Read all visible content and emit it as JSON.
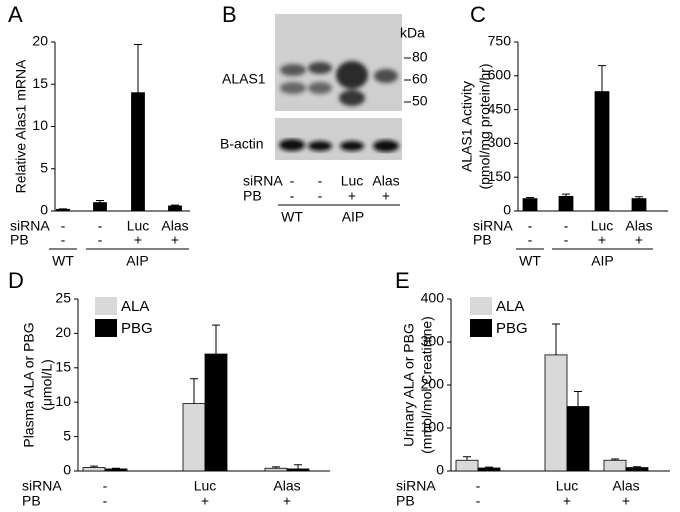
{
  "chart_data": [
    {
      "type": "bar",
      "panel": "A",
      "ylabel": [
        "Relative Alas1 mRNA"
      ],
      "ylim": [
        0,
        20
      ],
      "yticks": [
        0,
        5,
        10,
        15,
        20
      ],
      "rows": [
        {
          "label": "siRNA",
          "values": [
            "-",
            "-",
            "Luc",
            "Alas"
          ]
        },
        {
          "label": "PB",
          "values": [
            "-",
            "-",
            "+",
            "+"
          ]
        }
      ],
      "groups": [
        "WT",
        "AIP",
        "AIP",
        "AIP"
      ],
      "series": [
        {
          "color": "#000000",
          "values": [
            0.2,
            1.0,
            14,
            0.6
          ],
          "errors": [
            0.05,
            0.25,
            5.7,
            0.1
          ]
        }
      ]
    },
    {
      "type": "blot",
      "panel": "B",
      "unit": "kDa",
      "markers": [
        80,
        60,
        50
      ],
      "bands": [
        "ALAS1",
        "B-actin"
      ],
      "rows": [
        {
          "label": "siRNA",
          "values": [
            "-",
            "-",
            "Luc",
            "Alas"
          ]
        },
        {
          "label": "PB",
          "values": [
            "-",
            "-",
            "+",
            "+"
          ]
        }
      ],
      "groups": [
        "WT",
        "AIP",
        "AIP",
        "AIP"
      ]
    },
    {
      "type": "bar",
      "panel": "C",
      "ylabel": [
        "ALAS1 Activity",
        "(pmol/mg protein/hr)"
      ],
      "ylim": [
        0,
        750
      ],
      "yticks": [
        0,
        150,
        300,
        450,
        600,
        750
      ],
      "rows": [
        {
          "label": "siRNA",
          "values": [
            "-",
            "-",
            "Luc",
            "Alas"
          ]
        },
        {
          "label": "PB",
          "values": [
            "-",
            "-",
            "+",
            "+"
          ]
        }
      ],
      "groups": [
        "WT",
        "AIP",
        "AIP",
        "AIP"
      ],
      "series": [
        {
          "color": "#000000",
          "values": [
            55,
            65,
            530,
            55
          ],
          "errors": [
            5,
            10,
            115,
            8
          ]
        }
      ]
    },
    {
      "type": "bar",
      "panel": "D",
      "ylabel": [
        "Plasma ALA or PBG",
        "(μmol/L)"
      ],
      "ylim": [
        0,
        25
      ],
      "yticks": [
        0,
        5,
        10,
        15,
        20,
        25
      ],
      "rows": [
        {
          "label": "siRNA",
          "values": [
            "-",
            "Luc",
            "Alas"
          ]
        },
        {
          "label": "PB",
          "values": [
            "-",
            "+",
            "+"
          ]
        }
      ],
      "series": [
        {
          "name": "ALA",
          "color": "#d9d9d9",
          "values": [
            0.5,
            9.8,
            0.4
          ],
          "errors": [
            0.2,
            3.6,
            0.2
          ]
        },
        {
          "name": "PBG",
          "color": "#000000",
          "values": [
            0.3,
            17,
            0.3
          ],
          "errors": [
            0.1,
            4.2,
            0.6
          ]
        }
      ]
    },
    {
      "type": "bar",
      "panel": "E",
      "ylabel": [
        "Urinary ALA or PBG",
        "(mmol/mol Creatinine)"
      ],
      "ylim": [
        0,
        400
      ],
      "yticks": [
        0,
        100,
        200,
        300,
        400
      ],
      "rows": [
        {
          "label": "siRNA",
          "values": [
            "-",
            "Luc",
            "Alas"
          ]
        },
        {
          "label": "PB",
          "values": [
            "-",
            "+",
            "+"
          ]
        }
      ],
      "series": [
        {
          "name": "ALA",
          "color": "#d9d9d9",
          "values": [
            25,
            270,
            25
          ],
          "errors": [
            8,
            72,
            3
          ]
        },
        {
          "name": "PBG",
          "color": "#000000",
          "values": [
            7,
            150,
            8
          ],
          "errors": [
            2,
            35,
            2
          ]
        }
      ]
    }
  ]
}
